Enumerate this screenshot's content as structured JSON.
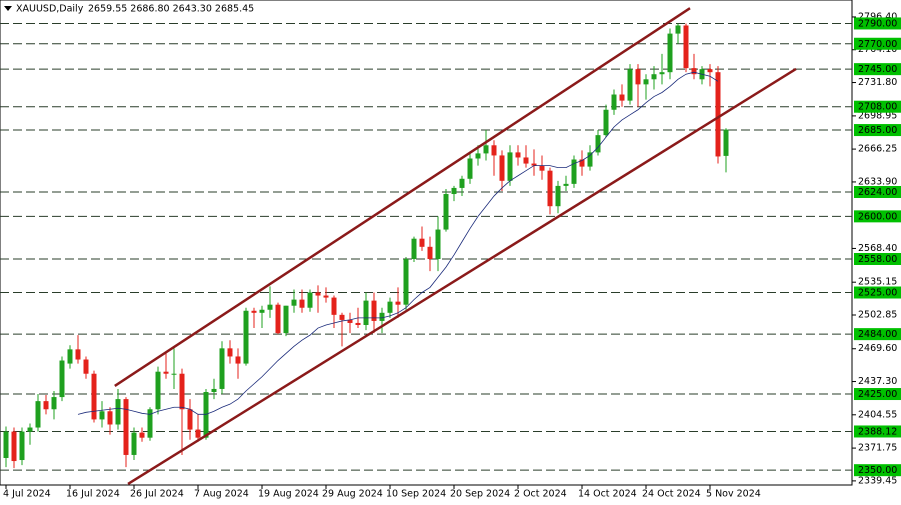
{
  "chart_data": {
    "type": "candlestick",
    "title": "XAUUSD,Daily",
    "subtitle": "2659.55 2686.80 2643.30 2685.45",
    "categories": [
      "4 Jul 2024",
      null,
      null,
      null,
      null,
      null,
      null,
      null,
      "16 Jul 2024",
      null,
      null,
      null,
      null,
      null,
      null,
      null,
      "26 Jul 2024",
      null,
      null,
      null,
      null,
      null,
      null,
      null,
      "7 Aug 2024",
      null,
      null,
      null,
      null,
      null,
      null,
      null,
      "19 Aug 2024",
      null,
      null,
      null,
      null,
      null,
      null,
      null,
      "29 Aug 2024",
      null,
      null,
      null,
      null,
      null,
      null,
      null,
      "10 Sep 2024",
      null,
      null,
      null,
      null,
      null,
      null,
      null,
      "20 Sep 2024",
      null,
      null,
      null,
      null,
      null,
      null,
      null,
      "2 Oct 2024",
      null,
      null,
      null,
      null,
      null,
      null,
      null,
      "14 Oct 2024",
      null,
      null,
      null,
      null,
      null,
      null,
      null,
      "24 Oct 2024",
      null,
      null,
      null,
      null,
      null,
      null,
      null,
      "5 Nov 2024",
      null,
      null
    ],
    "open": [
      2362,
      2388,
      2360,
      2388,
      2392,
      2418,
      2410,
      2422,
      2455,
      2469,
      2459,
      2445,
      2400,
      2408,
      2395,
      2420,
      2365,
      2387,
      2382,
      2410,
      2447,
      2445,
      2445,
      2410,
      2390,
      2382,
      2427,
      2430,
      2470,
      2462,
      2455,
      2507,
      2505,
      2508,
      2513,
      2485,
      2512,
      2518,
      2510,
      2525,
      2522,
      2520,
      2503,
      2498,
      2495,
      2493,
      2517,
      2497,
      2505,
      2516,
      2513,
      2558,
      2578,
      2570,
      2558,
      2587,
      2622,
      2628,
      2637,
      2657,
      2662,
      2670,
      2660,
      2635,
      2663,
      2658,
      2652,
      2650,
      2645,
      2610,
      2630,
      2632,
      2656,
      2649,
      2663,
      2680,
      2705,
      2720,
      2714,
      2745,
      2730,
      2735,
      2740,
      2742,
      2780,
      2788,
      2746,
      2735,
      2745,
      2742,
      2659.55
    ],
    "high": [
      2393,
      2392,
      2392,
      2396,
      2425,
      2424,
      2428,
      2462,
      2473,
      2483,
      2462,
      2448,
      2418,
      2412,
      2430,
      2422,
      2392,
      2392,
      2412,
      2452,
      2465,
      2470,
      2450,
      2420,
      2405,
      2430,
      2440,
      2477,
      2478,
      2470,
      2510,
      2510,
      2512,
      2531,
      2515,
      2512,
      2528,
      2528,
      2528,
      2532,
      2530,
      2522,
      2505,
      2505,
      2510,
      2525,
      2525,
      2510,
      2520,
      2530,
      2560,
      2580,
      2590,
      2580,
      2600,
      2627,
      2630,
      2640,
      2664,
      2670,
      2685,
      2675,
      2665,
      2670,
      2670,
      2670,
      2666,
      2660,
      2648,
      2635,
      2640,
      2660,
      2665,
      2670,
      2685,
      2710,
      2725,
      2730,
      2750,
      2750,
      2740,
      2748,
      2760,
      2785,
      2790,
      2790,
      2760,
      2748,
      2750,
      2748,
      2686.8
    ],
    "low": [
      2353,
      2352,
      2355,
      2375,
      2388,
      2405,
      2400,
      2418,
      2450,
      2455,
      2440,
      2397,
      2392,
      2385,
      2390,
      2353,
      2360,
      2378,
      2379,
      2405,
      2440,
      2430,
      2365,
      2380,
      2378,
      2380,
      2420,
      2425,
      2455,
      2440,
      2453,
      2490,
      2490,
      2500,
      2484,
      2482,
      2505,
      2505,
      2506,
      2505,
      2515,
      2490,
      2472,
      2485,
      2490,
      2488,
      2485,
      2485,
      2500,
      2500,
      2508,
      2555,
      2566,
      2546,
      2546,
      2585,
      2615,
      2620,
      2632,
      2650,
      2655,
      2640,
      2625,
      2630,
      2650,
      2648,
      2640,
      2636,
      2602,
      2603,
      2625,
      2628,
      2640,
      2645,
      2660,
      2678,
      2700,
      2708,
      2710,
      2708,
      2715,
      2725,
      2730,
      2735,
      2770,
      2742,
      2735,
      2730,
      2728,
      2652,
      2643.3
    ],
    "close": [
      2388,
      2359,
      2388,
      2392,
      2418,
      2410,
      2422,
      2458,
      2469,
      2459,
      2445,
      2400,
      2408,
      2395,
      2420,
      2365,
      2387,
      2382,
      2410,
      2447,
      2445,
      2445,
      2410,
      2390,
      2382,
      2427,
      2430,
      2470,
      2462,
      2455,
      2507,
      2505,
      2508,
      2513,
      2485,
      2512,
      2518,
      2510,
      2525,
      2522,
      2520,
      2503,
      2498,
      2495,
      2493,
      2517,
      2497,
      2505,
      2516,
      2513,
      2558,
      2578,
      2570,
      2558,
      2587,
      2622,
      2628,
      2637,
      2657,
      2662,
      2670,
      2660,
      2635,
      2663,
      2658,
      2652,
      2650,
      2645,
      2610,
      2630,
      2632,
      2656,
      2649,
      2663,
      2680,
      2705,
      2720,
      2714,
      2745,
      2730,
      2735,
      2740,
      2742,
      2780,
      2788,
      2746,
      2740,
      2745,
      2742,
      2659,
      2685.45
    ],
    "ma": [
      null,
      null,
      null,
      null,
      null,
      null,
      null,
      null,
      null,
      2405,
      2407,
      2408,
      2409,
      2410,
      2411,
      2410,
      2408,
      2406,
      2405,
      2408,
      2410,
      2412,
      2412,
      2410,
      2405,
      2405,
      2408,
      2412,
      2415,
      2420,
      2428,
      2435,
      2442,
      2450,
      2458,
      2465,
      2472,
      2478,
      2483,
      2490,
      2493,
      2495,
      2497,
      2498,
      2500,
      2500,
      2500,
      2500,
      2502,
      2505,
      2510,
      2518,
      2525,
      2530,
      2540,
      2550,
      2562,
      2575,
      2588,
      2600,
      2610,
      2620,
      2628,
      2635,
      2640,
      2645,
      2650,
      2650,
      2650,
      2648,
      2648,
      2652,
      2655,
      2660,
      2668,
      2678,
      2688,
      2695,
      2700,
      2705,
      2712,
      2718,
      2722,
      2728,
      2735,
      2740,
      2742,
      2740,
      2738,
      2733,
      null
    ],
    "channels": [
      {
        "x": [
          13.6,
          85.5
        ],
        "values": [
          2433,
          2805
        ]
      },
      {
        "x": [
          15.25,
          98.75
        ],
        "values": [
          2336.4,
          2745.2
        ]
      }
    ],
    "levels": [
      {
        "value": 2790,
        "label": "2790.00"
      },
      {
        "value": 2770,
        "label": "2770.00"
      },
      {
        "value": 2745,
        "label": "2745.00"
      },
      {
        "value": 2708,
        "label": "2708.00"
      },
      {
        "value": 2685,
        "label": "2685.00"
      },
      {
        "value": 2624,
        "label": "2624.00"
      },
      {
        "value": 2600,
        "label": "2600.00"
      },
      {
        "value": 2558,
        "label": "2558.00"
      },
      {
        "value": 2525,
        "label": "2525.00"
      },
      {
        "value": 2484,
        "label": "2484.00"
      },
      {
        "value": 2425,
        "label": "2425.00"
      },
      2388.12,
      {
        "value": 2350,
        "label": "2350.00"
      }
    ],
    "ylim": [
      2335.4,
      2813.1
    ],
    "yticks": [
      {
        "value": 2796.4,
        "label": "2796.40"
      },
      {
        "value": 2764.1,
        "label": "2764.10"
      },
      {
        "value": 2731.8,
        "label": "2731.80"
      },
      {
        "value": 2698.95,
        "label": "2698.95"
      },
      {
        "value": 2666.25,
        "label": "2666.25"
      },
      {
        "value": 2633.9,
        "label": "2633.90"
      },
      {
        "value": 2568.4,
        "label": "2568.40"
      },
      {
        "value": 2535.15,
        "label": "2535.15"
      },
      {
        "value": 2502.85,
        "label": "2502.85"
      },
      {
        "value": 2469.6,
        "label": "2469.60"
      },
      {
        "value": 2437.3,
        "label": "2437.30"
      },
      {
        "value": 2404.55,
        "label": "2404.55"
      },
      {
        "value": 2371.75,
        "label": "2371.75"
      },
      {
        "value": 2339.45,
        "label": "2339.45"
      }
    ],
    "up_color": "#1fa01f",
    "down_color": "#e4221b",
    "channel_color": "#8b1a1a",
    "ma_color": "#1a2a7a",
    "level_color": "#00c000"
  }
}
